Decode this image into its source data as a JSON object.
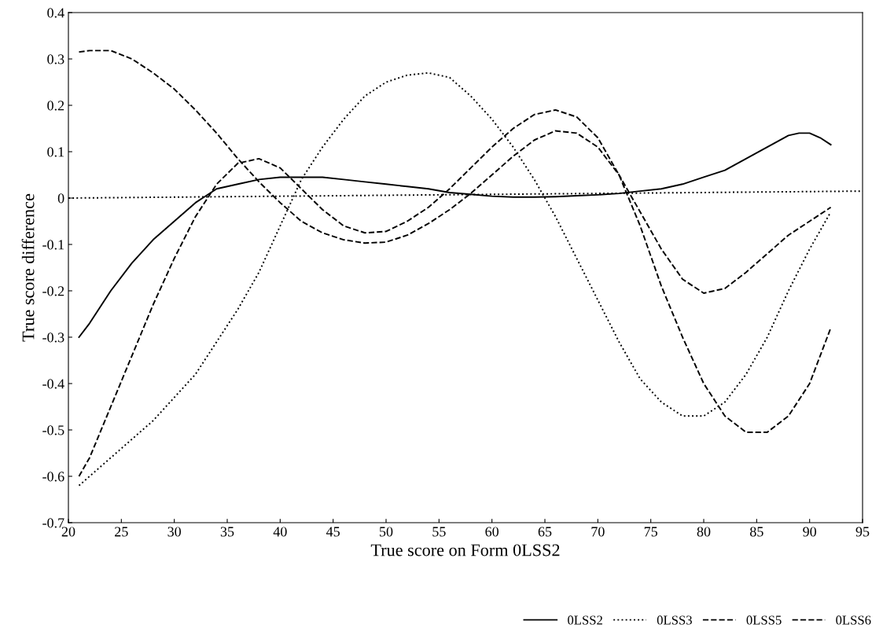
{
  "chart_data": {
    "type": "line",
    "xlabel": "True score on Form 0LSS2",
    "ylabel": "True score difference",
    "x": [
      21,
      22,
      24,
      26,
      28,
      30,
      32,
      34,
      36,
      38,
      40,
      42,
      44,
      46,
      48,
      50,
      52,
      54,
      56,
      58,
      60,
      62,
      64,
      66,
      68,
      70,
      72,
      74,
      76,
      78,
      80,
      82,
      84,
      86,
      88,
      90,
      92
    ],
    "series": [
      {
        "name": "0LSS2",
        "color": "#000000",
        "line_style": "solid",
        "x": [
          21,
          22,
          24,
          26,
          28,
          30,
          32,
          34,
          36,
          38,
          40,
          42,
          44,
          46,
          48,
          50,
          52,
          54,
          56,
          58,
          60,
          62,
          64,
          66,
          68,
          70,
          72,
          74,
          76,
          78,
          80,
          82,
          84,
          86,
          88,
          89,
          90,
          91,
          92
        ],
        "values": [
          -0.3,
          -0.27,
          -0.2,
          -0.14,
          -0.09,
          -0.05,
          -0.01,
          0.02,
          0.03,
          0.04,
          0.045,
          0.045,
          0.045,
          0.04,
          0.035,
          0.03,
          0.025,
          0.02,
          0.012,
          0.008,
          0.004,
          0.002,
          0.002,
          0.003,
          0.005,
          0.007,
          0.01,
          0.015,
          0.02,
          0.03,
          0.045,
          0.06,
          0.085,
          0.11,
          0.135,
          0.14,
          0.14,
          0.13,
          0.115
        ]
      },
      {
        "name": "0LSS3",
        "color": "#000000",
        "line_style": "dotted",
        "values": [
          -0.62,
          -0.6,
          -0.56,
          -0.52,
          -0.48,
          -0.43,
          -0.38,
          -0.31,
          -0.24,
          -0.16,
          -0.06,
          0.04,
          0.11,
          0.17,
          0.22,
          0.25,
          0.265,
          0.27,
          0.26,
          0.22,
          0.17,
          0.11,
          0.04,
          -0.04,
          -0.13,
          -0.22,
          -0.31,
          -0.39,
          -0.44,
          -0.47,
          -0.47,
          -0.44,
          -0.38,
          -0.3,
          -0.2,
          -0.11,
          -0.03
        ]
      },
      {
        "name": "0LSS5",
        "color": "#000000",
        "line_style": "dashed",
        "values": [
          -0.6,
          -0.56,
          -0.45,
          -0.34,
          -0.23,
          -0.13,
          -0.04,
          0.03,
          0.075,
          0.085,
          0.065,
          0.02,
          -0.025,
          -0.06,
          -0.075,
          -0.072,
          -0.05,
          -0.02,
          0.02,
          0.065,
          0.11,
          0.15,
          0.18,
          0.19,
          0.175,
          0.13,
          0.05,
          -0.06,
          -0.19,
          -0.3,
          -0.4,
          -0.47,
          -0.505,
          -0.505,
          -0.47,
          -0.4,
          -0.28
        ]
      },
      {
        "name": "0LSS6",
        "color": "#000000",
        "line_style": "dashed",
        "values": [
          0.315,
          0.318,
          0.318,
          0.3,
          0.27,
          0.235,
          0.19,
          0.14,
          0.085,
          0.035,
          -0.01,
          -0.05,
          -0.075,
          -0.09,
          -0.097,
          -0.095,
          -0.08,
          -0.055,
          -0.025,
          0.01,
          0.05,
          0.09,
          0.125,
          0.145,
          0.14,
          0.11,
          0.05,
          -0.03,
          -0.11,
          -0.175,
          -0.205,
          -0.195,
          -0.16,
          -0.12,
          -0.08,
          -0.05,
          -0.02
        ]
      },
      {
        "color": "#000000",
        "line_style": "dotted",
        "x": [
          20,
          95
        ],
        "values": [
          0,
          0.015
        ]
      }
    ],
    "xlim": [
      20,
      95
    ],
    "xticks": [
      20,
      25,
      30,
      35,
      40,
      45,
      50,
      55,
      60,
      65,
      70,
      75,
      80,
      85,
      90,
      95
    ],
    "ylim": [
      -0.7,
      0.4
    ],
    "yticks": [
      -0.7,
      -0.6,
      -0.5,
      -0.4,
      -0.3,
      -0.2,
      -0.1,
      0,
      0.1,
      0.2,
      0.3,
      0.4
    ],
    "grid": false,
    "legend": "bottom right",
    "marker": "none"
  }
}
